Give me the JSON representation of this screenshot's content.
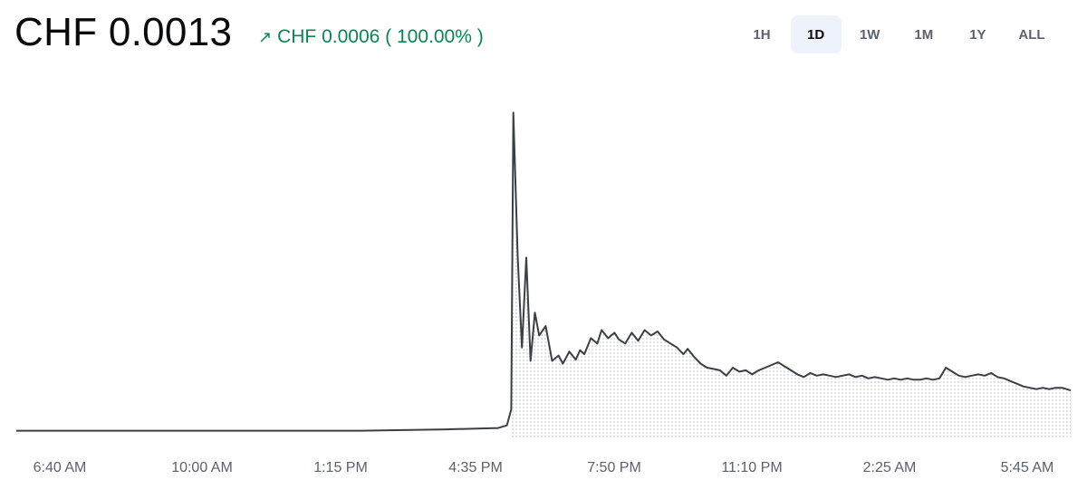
{
  "header": {
    "price": "CHF 0.0013",
    "change_arrow": "↗",
    "change_text": "CHF 0.0006 ( 100.00% )"
  },
  "ranges": {
    "items": [
      "1H",
      "1D",
      "1W",
      "1M",
      "1Y",
      "ALL"
    ],
    "active": "1D"
  },
  "colors": {
    "line": "#3c3f47",
    "positive": "#098551",
    "area_dots": "#c8cad0"
  },
  "chart_data": {
    "type": "area",
    "x_tick_labels": [
      "6:40 AM",
      "10:00 AM",
      "1:15 PM",
      "4:35 PM",
      "7:50 PM",
      "11:10 PM",
      "2:25 AM",
      "5:45 AM"
    ],
    "series_unit": "CHF",
    "grid": false,
    "points": [
      [
        0.0,
        0.05
      ],
      [
        2.0,
        0.05
      ],
      [
        4.0,
        0.05
      ],
      [
        6.0,
        0.05
      ],
      [
        8.0,
        0.05
      ],
      [
        10.0,
        0.06
      ],
      [
        11.2,
        0.07
      ],
      [
        11.4,
        0.09
      ],
      [
        11.5,
        0.21
      ],
      [
        11.55,
        2.42
      ],
      [
        11.65,
        1.35
      ],
      [
        11.75,
        0.67
      ],
      [
        11.85,
        1.34
      ],
      [
        11.95,
        0.57
      ],
      [
        12.05,
        0.93
      ],
      [
        12.15,
        0.76
      ],
      [
        12.3,
        0.83
      ],
      [
        12.45,
        0.57
      ],
      [
        12.6,
        0.61
      ],
      [
        12.7,
        0.55
      ],
      [
        12.85,
        0.64
      ],
      [
        13.0,
        0.58
      ],
      [
        13.1,
        0.65
      ],
      [
        13.2,
        0.62
      ],
      [
        13.35,
        0.74
      ],
      [
        13.5,
        0.7
      ],
      [
        13.6,
        0.8
      ],
      [
        13.75,
        0.74
      ],
      [
        13.9,
        0.78
      ],
      [
        14.0,
        0.73
      ],
      [
        14.15,
        0.7
      ],
      [
        14.3,
        0.78
      ],
      [
        14.45,
        0.72
      ],
      [
        14.6,
        0.8
      ],
      [
        14.75,
        0.76
      ],
      [
        14.9,
        0.79
      ],
      [
        15.05,
        0.73
      ],
      [
        15.2,
        0.7
      ],
      [
        15.35,
        0.67
      ],
      [
        15.5,
        0.62
      ],
      [
        15.6,
        0.66
      ],
      [
        15.75,
        0.6
      ],
      [
        15.9,
        0.55
      ],
      [
        16.05,
        0.52
      ],
      [
        16.2,
        0.51
      ],
      [
        16.35,
        0.5
      ],
      [
        16.5,
        0.46
      ],
      [
        16.65,
        0.52
      ],
      [
        16.8,
        0.49
      ],
      [
        16.95,
        0.5
      ],
      [
        17.1,
        0.47
      ],
      [
        17.25,
        0.5
      ],
      [
        17.4,
        0.52
      ],
      [
        17.55,
        0.54
      ],
      [
        17.7,
        0.56
      ],
      [
        17.85,
        0.53
      ],
      [
        18.0,
        0.5
      ],
      [
        18.15,
        0.47
      ],
      [
        18.3,
        0.45
      ],
      [
        18.45,
        0.48
      ],
      [
        18.6,
        0.46
      ],
      [
        18.75,
        0.47
      ],
      [
        18.9,
        0.46
      ],
      [
        19.05,
        0.45
      ],
      [
        19.2,
        0.46
      ],
      [
        19.35,
        0.47
      ],
      [
        19.5,
        0.45
      ],
      [
        19.65,
        0.46
      ],
      [
        19.8,
        0.44
      ],
      [
        19.95,
        0.45
      ],
      [
        20.1,
        0.44
      ],
      [
        20.25,
        0.43
      ],
      [
        20.4,
        0.44
      ],
      [
        20.55,
        0.43
      ],
      [
        20.7,
        0.44
      ],
      [
        20.85,
        0.43
      ],
      [
        21.0,
        0.43
      ],
      [
        21.15,
        0.44
      ],
      [
        21.3,
        0.43
      ],
      [
        21.45,
        0.44
      ],
      [
        21.6,
        0.52
      ],
      [
        21.75,
        0.49
      ],
      [
        21.9,
        0.46
      ],
      [
        22.05,
        0.45
      ],
      [
        22.2,
        0.46
      ],
      [
        22.35,
        0.47
      ],
      [
        22.5,
        0.46
      ],
      [
        22.65,
        0.48
      ],
      [
        22.8,
        0.45
      ],
      [
        22.95,
        0.44
      ],
      [
        23.1,
        0.42
      ],
      [
        23.25,
        0.4
      ],
      [
        23.4,
        0.38
      ],
      [
        23.55,
        0.37
      ],
      [
        23.7,
        0.36
      ],
      [
        23.85,
        0.37
      ],
      [
        24.0,
        0.36
      ],
      [
        24.15,
        0.37
      ],
      [
        24.3,
        0.37
      ],
      [
        24.5,
        0.35
      ]
    ]
  }
}
